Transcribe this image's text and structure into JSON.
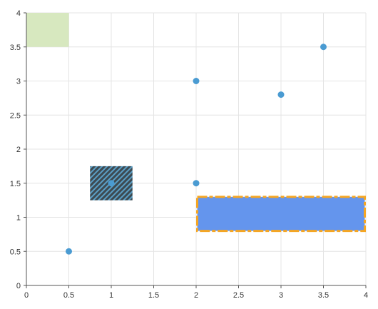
{
  "colors": {
    "grid": "#e4e4e4",
    "axis": "#555555",
    "point": "#4a9bd2",
    "green_band": "#d7e8bf",
    "hatched_fill": "#3c4a52",
    "hatched_stripe": "#5b9fc6",
    "blue_rect_fill": "#6495ed",
    "blue_rect_border": "#f5a623"
  },
  "chart_data": {
    "type": "scatter",
    "title": "",
    "xlabel": "",
    "ylabel": "",
    "xlim": [
      0,
      4
    ],
    "ylim": [
      0,
      4
    ],
    "grid": true,
    "legend": "none",
    "x_ticks": [
      "0",
      "0.5",
      "1",
      "1.5",
      "2",
      "2.5",
      "3",
      "3.5",
      "4"
    ],
    "y_ticks": [
      "0",
      "0.5",
      "1",
      "1.5",
      "2",
      "2.5",
      "3",
      "3.5",
      "4"
    ],
    "points": [
      {
        "x": 0.5,
        "y": 0.5
      },
      {
        "x": 1,
        "y": 1.5
      },
      {
        "x": 2,
        "y": 1.5
      },
      {
        "x": 2,
        "y": 3
      },
      {
        "x": 3,
        "y": 2.8
      },
      {
        "x": 3.5,
        "y": 3.5
      }
    ],
    "annotations": [
      {
        "kind": "rectangle",
        "style": "solid-green",
        "x0": 0,
        "x1": 0.5,
        "y0": 3.5,
        "y1": 4
      },
      {
        "kind": "rectangle",
        "style": "hatched",
        "x0": 0.75,
        "x1": 1.25,
        "y0": 1.25,
        "y1": 1.75
      },
      {
        "kind": "rectangle",
        "style": "blue-dashed-orange-border",
        "x0": 2,
        "x1": 4,
        "y0": 0.8,
        "y1": 1.3
      }
    ]
  }
}
